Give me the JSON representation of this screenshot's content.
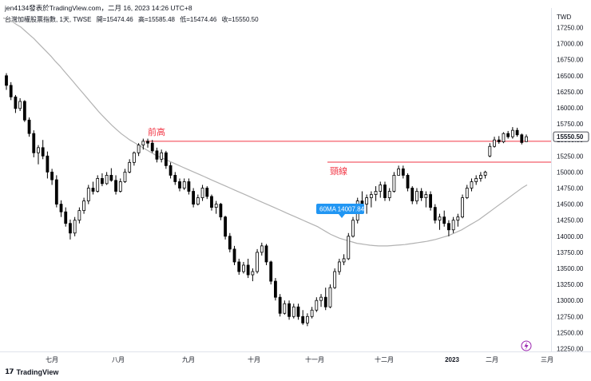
{
  "header": {
    "title": "jen4134發表於TradingView.com，二月 16, 2023 14:26 UTC+8"
  },
  "symbol": {
    "name": "台灣加權股票指數, 1天, TWSE",
    "open": "開=15474.46",
    "high": "高=15585.48",
    "low": "低=15474.46",
    "close": "收=15550.50"
  },
  "footer": {
    "brand": "TradingView"
  },
  "colors": {
    "up": "#ffffff",
    "down": "#000000",
    "wick": "#000000",
    "ma": "#b2b2b2",
    "hline": "#f23645",
    "label_bg": "#2196f3",
    "last_price_bg": "#ffffff"
  },
  "chart_data": {
    "type": "candlestick",
    "currency": "TWD",
    "y_ticks": [
      12250,
      12500,
      12750,
      13000,
      13250,
      13500,
      13750,
      14000,
      14250,
      14500,
      14750,
      15000,
      15250,
      15500,
      15750,
      16000,
      16250,
      16500,
      16750,
      17000,
      17250
    ],
    "ylim": [
      12200,
      17300
    ],
    "last_price": "15550.50",
    "x_ticks": [
      "七月",
      "八月",
      "九月",
      "十月",
      "十一月",
      "十二月",
      "2023",
      "二月",
      "三月"
    ],
    "annotations": [
      {
        "label": "前高",
        "value": 15480
      },
      {
        "label": "頸線",
        "value": 15155
      }
    ],
    "ma_label": "60MA 14007.84",
    "candles": [
      [
        16500,
        16540,
        16280,
        16350
      ],
      [
        16350,
        16400,
        16120,
        16170
      ],
      [
        16170,
        16200,
        15920,
        15990
      ],
      [
        15990,
        16150,
        15950,
        16100
      ],
      [
        16100,
        16120,
        15780,
        15810
      ],
      [
        15810,
        15850,
        15550,
        15600
      ],
      [
        15600,
        15650,
        15230,
        15300
      ],
      [
        15300,
        15420,
        15120,
        15380
      ],
      [
        15380,
        15500,
        15200,
        15250
      ],
      [
        15250,
        15320,
        14900,
        15000
      ],
      [
        15000,
        15050,
        14800,
        14880
      ],
      [
        14880,
        14950,
        14450,
        14500
      ],
      [
        14500,
        14560,
        14300,
        14380
      ],
      [
        14380,
        14450,
        14150,
        14200
      ],
      [
        14200,
        14260,
        13950,
        14050
      ],
      [
        14050,
        14300,
        14000,
        14250
      ],
      [
        14250,
        14450,
        14200,
        14400
      ],
      [
        14400,
        14600,
        14350,
        14550
      ],
      [
        14550,
        14800,
        14500,
        14750
      ],
      [
        14750,
        14850,
        14650,
        14700
      ],
      [
        14700,
        14950,
        14680,
        14900
      ],
      [
        14900,
        14980,
        14780,
        14820
      ],
      [
        14820,
        15000,
        14800,
        14950
      ],
      [
        14950,
        15060,
        14850,
        14870
      ],
      [
        14870,
        14950,
        14650,
        14700
      ],
      [
        14700,
        14900,
        14680,
        14850
      ],
      [
        14850,
        15050,
        14830,
        15000
      ],
      [
        15000,
        15200,
        14980,
        15150
      ],
      [
        15150,
        15320,
        15100,
        15300
      ],
      [
        15300,
        15450,
        15250,
        15420
      ],
      [
        15420,
        15520,
        15350,
        15480
      ],
      [
        15480,
        15520,
        15380,
        15450
      ],
      [
        15450,
        15500,
        15300,
        15330
      ],
      [
        15330,
        15380,
        15150,
        15200
      ],
      [
        15200,
        15350,
        15150,
        15300
      ],
      [
        15300,
        15330,
        15050,
        15100
      ],
      [
        15100,
        15150,
        14900,
        14950
      ],
      [
        14950,
        15000,
        14800,
        14850
      ],
      [
        14850,
        14900,
        14700,
        14750
      ],
      [
        14750,
        14900,
        14720,
        14850
      ],
      [
        14850,
        14900,
        14650,
        14700
      ],
      [
        14700,
        14750,
        14450,
        14500
      ],
      [
        14500,
        14650,
        14480,
        14600
      ],
      [
        14600,
        14800,
        14550,
        14750
      ],
      [
        14750,
        14780,
        14580,
        14620
      ],
      [
        14620,
        14650,
        14400,
        14450
      ],
      [
        14450,
        14550,
        14350,
        14500
      ],
      [
        14500,
        14520,
        14250,
        14300
      ],
      [
        14300,
        14320,
        13950,
        14000
      ],
      [
        14000,
        14050,
        13750,
        13800
      ],
      [
        13800,
        13850,
        13550,
        13600
      ],
      [
        13600,
        13650,
        13400,
        13450
      ],
      [
        13450,
        13600,
        13420,
        13550
      ],
      [
        13550,
        13650,
        13350,
        13400
      ],
      [
        13400,
        13500,
        13300,
        13450
      ],
      [
        13450,
        13800,
        13420,
        13750
      ],
      [
        13750,
        13900,
        13700,
        13850
      ],
      [
        13850,
        13880,
        13550,
        13600
      ],
      [
        13600,
        13620,
        13250,
        13300
      ],
      [
        13300,
        13350,
        13000,
        13050
      ],
      [
        13050,
        13100,
        12750,
        12800
      ],
      [
        12800,
        13000,
        12780,
        12950
      ],
      [
        12950,
        13000,
        12700,
        12750
      ],
      [
        12750,
        12950,
        12720,
        12900
      ],
      [
        12900,
        12950,
        12700,
        12750
      ],
      [
        12750,
        12850,
        12620,
        12650
      ],
      [
        12650,
        12800,
        12600,
        12750
      ],
      [
        12750,
        12900,
        12720,
        12850
      ],
      [
        12850,
        13050,
        12820,
        13000
      ],
      [
        13000,
        13100,
        12900,
        13050
      ],
      [
        13050,
        13200,
        12850,
        12900
      ],
      [
        12900,
        13250,
        12880,
        13200
      ],
      [
        13200,
        13500,
        13180,
        13450
      ],
      [
        13450,
        13650,
        13400,
        13600
      ],
      [
        13600,
        13720,
        13550,
        13650
      ],
      [
        13650,
        14050,
        13630,
        14000
      ],
      [
        14000,
        14300,
        13980,
        14250
      ],
      [
        14250,
        14600,
        14200,
        14550
      ],
      [
        14550,
        14700,
        14450,
        14500
      ],
      [
        14500,
        14650,
        14350,
        14600
      ],
      [
        14600,
        14700,
        14450,
        14650
      ],
      [
        14650,
        14780,
        14550,
        14700
      ],
      [
        14700,
        14850,
        14600,
        14800
      ],
      [
        14800,
        14850,
        14550,
        14600
      ],
      [
        14600,
        14750,
        14550,
        14700
      ],
      [
        14700,
        15000,
        14680,
        14950
      ],
      [
        14950,
        15100,
        14950,
        15050
      ],
      [
        15050,
        15100,
        14900,
        14950
      ],
      [
        14950,
        14980,
        14700,
        14750
      ],
      [
        14750,
        14780,
        14500,
        14550
      ],
      [
        14550,
        14750,
        14500,
        14700
      ],
      [
        14700,
        14750,
        14550,
        14600
      ],
      [
        14600,
        14700,
        14450,
        14650
      ],
      [
        14650,
        14700,
        14400,
        14450
      ],
      [
        14450,
        14500,
        14200,
        14250
      ],
      [
        14250,
        14350,
        14100,
        14300
      ],
      [
        14300,
        14400,
        14150,
        14200
      ],
      [
        14200,
        14250,
        14000,
        14100
      ],
      [
        14100,
        14300,
        14050,
        14250
      ],
      [
        14250,
        14350,
        14150,
        14300
      ],
      [
        14300,
        14650,
        14280,
        14600
      ],
      [
        14600,
        14800,
        14580,
        14750
      ],
      [
        14750,
        14900,
        14700,
        14850
      ],
      [
        14850,
        14950,
        14800,
        14900
      ],
      [
        14900,
        15000,
        14850,
        14950
      ],
      [
        14950,
        15020,
        14900,
        15000
      ],
      [
        15250,
        15450,
        15230,
        15400
      ],
      [
        15400,
        15550,
        15380,
        15500
      ],
      [
        15500,
        15560,
        15440,
        15470
      ],
      [
        15470,
        15620,
        15450,
        15600
      ],
      [
        15600,
        15640,
        15520,
        15550
      ],
      [
        15550,
        15700,
        15520,
        15650
      ],
      [
        15650,
        15690,
        15550,
        15580
      ],
      [
        15580,
        15600,
        15430,
        15460
      ],
      [
        15474,
        15585,
        15474,
        15550
      ]
    ],
    "ma60": [
      17400,
      17380,
      17350,
      17300,
      17260,
      17200,
      17140,
      17080,
      17010,
      16940,
      16870,
      16800,
      16720,
      16650,
      16570,
      16490,
      16410,
      16330,
      16250,
      16170,
      16090,
      16010,
      15930,
      15860,
      15790,
      15720,
      15660,
      15600,
      15550,
      15500,
      15460,
      15420,
      15380,
      15340,
      15300,
      15260,
      15230,
      15200,
      15170,
      15140,
      15110,
      15080,
      15050,
      15020,
      14990,
      14960,
      14930,
      14900,
      14870,
      14840,
      14810,
      14780,
      14750,
      14720,
      14690,
      14660,
      14630,
      14600,
      14570,
      14540,
      14510,
      14480,
      14450,
      14420,
      14390,
      14360,
      14330,
      14300,
      14270,
      14240,
      14210,
      14180,
      14150,
      14110,
      14070,
      14030,
      14000,
      13970,
      13950,
      13930,
      13910,
      13890,
      13880,
      13870,
      13860,
      13855,
      13850,
      13850,
      13850,
      13855,
      13860,
      13865,
      13870,
      13880,
      13890,
      13900,
      13910,
      13920,
      13935,
      13950,
      13970,
      13990,
      14010,
      14040,
      14070,
      14100,
      14140,
      14180,
      14220,
      14260,
      14310,
      14360,
      14410,
      14460,
      14510,
      14560,
      14610,
      14660,
      14710,
      14760,
      14800
    ]
  }
}
